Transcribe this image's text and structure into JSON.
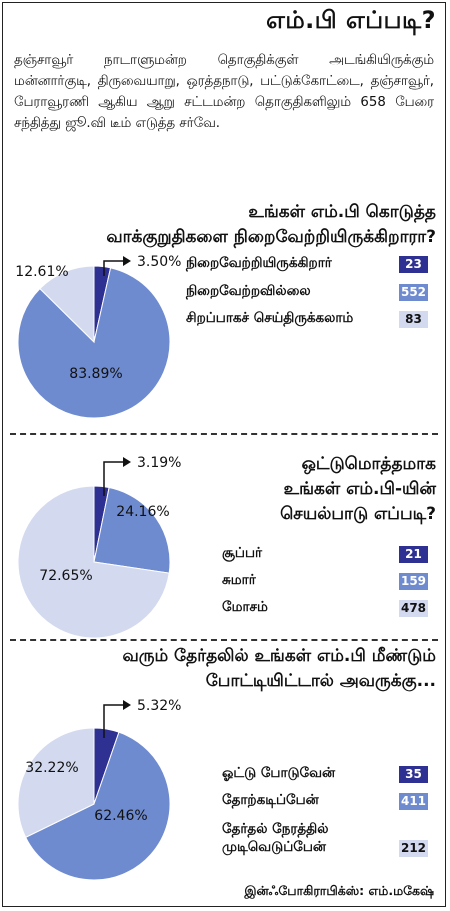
{
  "header": {
    "title": "எம்.பி எப்படி?"
  },
  "intro": "தஞ்சாவூர் நாடாளுமன்ற தொகுதிக்குள் அடங்கியிருக்கும் மன்னார்குடி, திருவையாறு, ஒரத்தநாடு, பட்டுக்கோட்டை, தஞ்சாவூர், பேராவூரணி ஆகிய ஆறு சட்டமன்ற தொகுதிகளிலும் 658 பேரை சந்தித்து ஜூ.வி டீம் எடுத்த சர்வே.",
  "colors": {
    "dark": "#2e3192",
    "mid": "#6f8bcf",
    "light": "#d3d9ef"
  },
  "chart_data": [
    {
      "type": "pie",
      "title_lines": [
        "உங்கள் எம்.பி கொடுத்த",
        "வாக்குறுதிகளை நிறைவேற்றியிருக்கிறாரா?"
      ],
      "slices": [
        {
          "label": "நிறைவேற்றியிருக்கிறார்",
          "count": 23,
          "percent": 3.5,
          "percent_label": "3.50%"
        },
        {
          "label": "நிறைவேற்றவில்லை",
          "count": 552,
          "percent": 83.89,
          "percent_label": "83.89%"
        },
        {
          "label": "சிறப்பாகச் செய்திருக்கலாம்",
          "count": 83,
          "percent": 12.61,
          "percent_label": "12.61%"
        }
      ]
    },
    {
      "type": "pie",
      "title_lines": [
        "ஒட்டுமொத்தமாக",
        "உங்கள் எம்.பி-யின்",
        "செயல்பாடு எப்படி?"
      ],
      "slices": [
        {
          "label": "சூப்பர்",
          "count": 21,
          "percent": 3.19,
          "percent_label": "3.19%"
        },
        {
          "label": "சுமார்",
          "count": 159,
          "percent": 24.16,
          "percent_label": "24.16%"
        },
        {
          "label": "மோசம்",
          "count": 478,
          "percent": 72.65,
          "percent_label": "72.65%"
        }
      ]
    },
    {
      "type": "pie",
      "title_lines": [
        "வரும் தேர்தலில் உங்கள் எம்.பி மீண்டும்",
        "போட்டியிட்டால் அவருக்கு..."
      ],
      "slices": [
        {
          "label": "ஓட்டு போடுவேன்",
          "count": 35,
          "percent": 5.32,
          "percent_label": "5.32%"
        },
        {
          "label": "தோற்கடிப்பேன்",
          "count": 411,
          "percent": 62.46,
          "percent_label": "62.46%"
        },
        {
          "label_lines": [
            "தேர்தல் நேரத்தில்",
            "முடிவெடுப்பேன்"
          ],
          "count": 212,
          "percent": 32.22,
          "percent_label": "32.22%"
        }
      ]
    }
  ],
  "credit": "இன்ஃபோகிராபிக்ஸ்: எம்.மகேஷ்"
}
